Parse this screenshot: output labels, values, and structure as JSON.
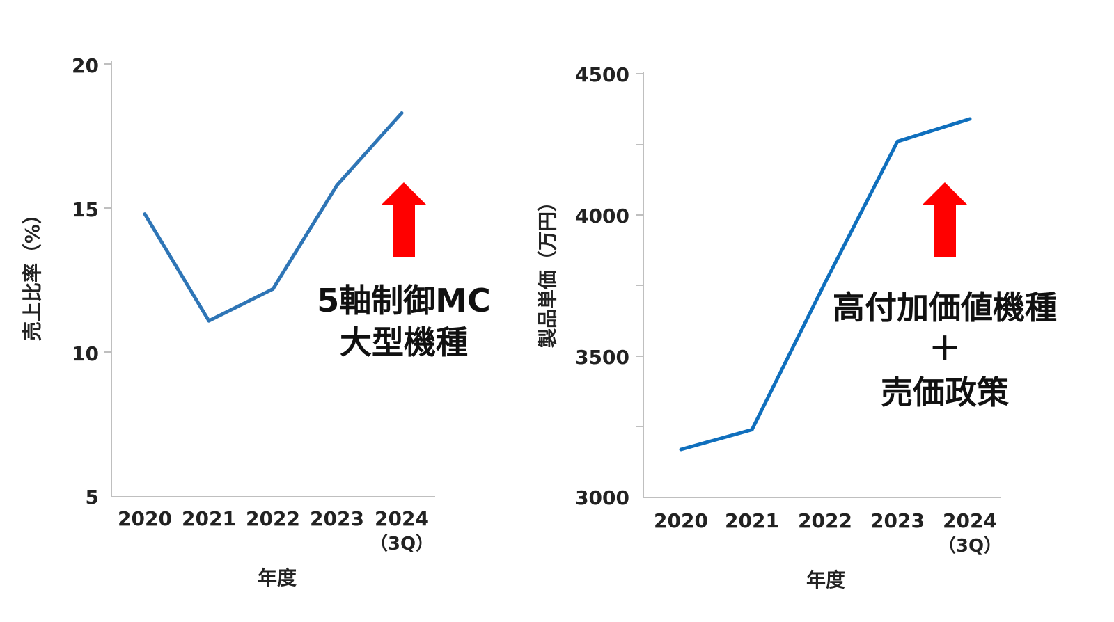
{
  "chart_data": [
    {
      "type": "line",
      "xlabel": "年度",
      "ylabel": "売上比率（%）",
      "categories": [
        "2020",
        "2021",
        "2022",
        "2023",
        "2024"
      ],
      "category_sublabels": [
        "",
        "",
        "",
        "",
        "（3Q）"
      ],
      "yticks": [
        "5",
        "10",
        "15",
        "20"
      ],
      "ylim": [
        5,
        20
      ],
      "series": [
        {
          "values": [
            14.8,
            11.1,
            12.2,
            15.8,
            18.3
          ]
        }
      ],
      "annotation": {
        "lines": [
          "5軸制御MC",
          "大型機種"
        ],
        "color": "#ff0000",
        "arrow": "up"
      },
      "grid": false
    },
    {
      "type": "line",
      "xlabel": "年度",
      "ylabel": "製品単価（万円）",
      "categories": [
        "2020",
        "2021",
        "2022",
        "2023",
        "2024"
      ],
      "category_sublabels": [
        "",
        "",
        "",
        "",
        "（3Q）"
      ],
      "yticks": [
        "3000",
        "3500",
        "4000",
        "4500"
      ],
      "ylim": [
        3000,
        4500
      ],
      "series": [
        {
          "values": [
            3170,
            3240,
            3760,
            4260,
            4340
          ]
        }
      ],
      "annotation": {
        "lines": [
          "高付加価値機種",
          "＋",
          "売価政策"
        ],
        "color": "#ff0000",
        "arrow": "up"
      },
      "grid": false
    }
  ]
}
